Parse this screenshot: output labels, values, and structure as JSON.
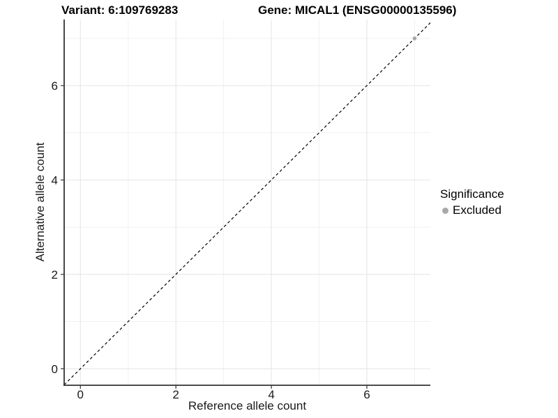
{
  "titles": {
    "variant": "Variant: 6:109769283",
    "gene": "Gene: MICAL1 (ENSG00000135596)"
  },
  "legend": {
    "title": "Significance",
    "entries": [
      {
        "label": "Excluded",
        "color": "#a8a8a8"
      }
    ]
  },
  "chart_data": {
    "type": "scatter",
    "xlabel": "Reference allele count",
    "ylabel": "Alternative allele count",
    "xlim": [
      -0.34,
      7.33
    ],
    "ylim": [
      -0.35,
      7.4
    ],
    "x_major_ticks": [
      0,
      2,
      4,
      6
    ],
    "y_major_ticks": [
      0,
      2,
      4,
      6
    ],
    "x_minor_ticks": [
      1,
      3,
      5,
      7
    ],
    "y_minor_ticks": [
      1,
      3,
      5,
      7
    ],
    "grid": true,
    "legend_position": "right",
    "identity_line": {
      "style": "dashed",
      "color": "#000000",
      "from": -0.34,
      "to": 7.4
    },
    "series": [
      {
        "name": "Excluded",
        "color": "#a8a8a8",
        "points": [
          {
            "x": 7,
            "y": 7
          }
        ]
      }
    ]
  },
  "colors": {
    "background": "#ffffff",
    "grid_major": "#e4e4e4",
    "grid_minor": "#f1f1f1",
    "axis_line": "#333333",
    "tick_mark": "#333333",
    "tick_label": "#1a1a1a"
  }
}
